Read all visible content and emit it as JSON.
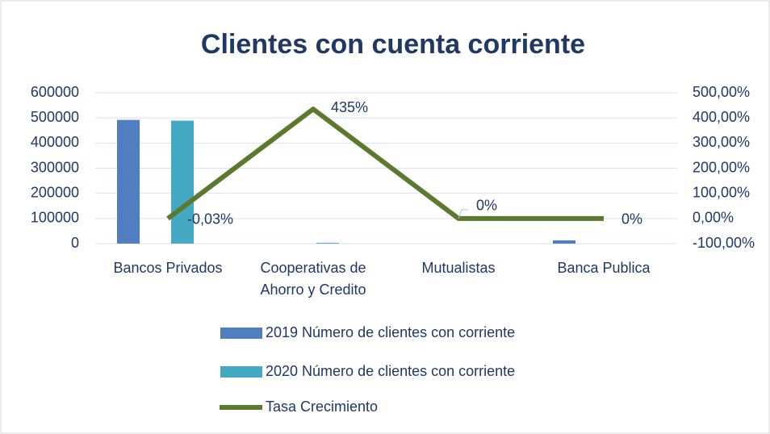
{
  "chart_data": {
    "type": "bar_line",
    "title": "Clientes con cuenta corriente",
    "categories": [
      "Bancos Privados",
      "Cooperativas de Ahorro y Credito",
      "Mutualistas",
      "Banca Publica"
    ],
    "series": [
      {
        "name": "2019 Número de clientes con corriente",
        "type": "bar",
        "color": "#4f7fc0",
        "values": [
          492000,
          0,
          0,
          13000
        ]
      },
      {
        "name": "2020 Número de clientes con corriente",
        "type": "bar",
        "color": "#45a9c4",
        "values": [
          489000,
          3000,
          0,
          0
        ]
      },
      {
        "name": "Tasa Crecimiento",
        "type": "line",
        "axis": "y2",
        "color": "#5b7a2e",
        "values": [
          -0.03,
          435,
          0,
          0
        ],
        "value_labels": [
          "-0,03%",
          "435%",
          "0%",
          "0%"
        ]
      }
    ],
    "ylim": [
      0,
      600000
    ],
    "yticks": [
      0,
      100000,
      200000,
      300000,
      400000,
      500000,
      600000
    ],
    "y2lim": [
      -100,
      500
    ],
    "y2ticks": [
      {
        "value": -100,
        "label": "-100,00%"
      },
      {
        "value": 0,
        "label": "0,00%"
      },
      {
        "value": 100,
        "label": "100,00%"
      },
      {
        "value": 200,
        "label": "200,00%"
      },
      {
        "value": 300,
        "label": "300,00%"
      },
      {
        "value": 400,
        "label": "400,00%"
      },
      {
        "value": 500,
        "label": "500,00%"
      }
    ],
    "grid": true,
    "legend": "bottom"
  }
}
